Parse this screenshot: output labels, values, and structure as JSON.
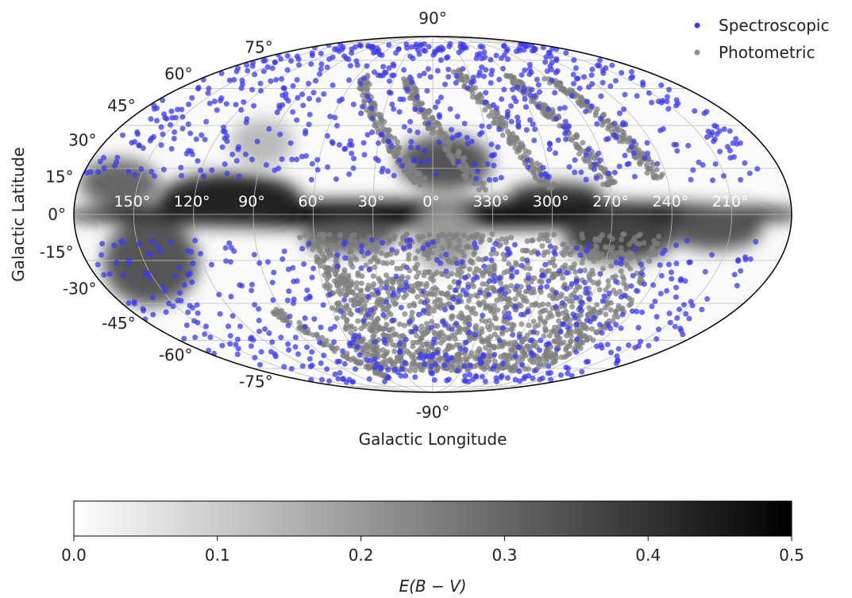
{
  "chart_data": {
    "type": "scatter",
    "projection": "mollweide",
    "xlabel": "Galactic Longitude",
    "ylabel": "Galactic Latitude",
    "grid": true,
    "legend_placement": "top-right",
    "lon_ticks": [
      150,
      120,
      90,
      60,
      30,
      0,
      330,
      300,
      270,
      240,
      210
    ],
    "lon_tick_labels": [
      "150°",
      "120°",
      "90°",
      "60°",
      "30°",
      "0°",
      "330°",
      "300°",
      "270°",
      "240°",
      "210°"
    ],
    "lat_ticks": [
      -90,
      -75,
      -60,
      -45,
      -30,
      -15,
      0,
      15,
      30,
      45,
      60,
      75,
      90
    ],
    "lat_tick_labels": [
      "-90°",
      "-75°",
      "-60°",
      "-45°",
      "-30°",
      "-15°",
      "0°",
      "15°",
      "30°",
      "45°",
      "60°",
      "75°",
      "90°"
    ],
    "series": [
      {
        "name": "Spectroscopic",
        "color": "#3a3af0",
        "n_points_approx": 1200,
        "distribution": "all-sky, avoiding Galactic plane; densest at northern high latitudes (l 60°–180°, b 20°–70°) and southern latitudes around l 300°–200°"
      },
      {
        "name": "Photometric",
        "color": "#808080",
        "n_points_approx": 2500,
        "distribution": "survey stripes; north l 0°–270° (b 10°–65°), dense south l 0°–240° (b -10° to -75°)"
      }
    ],
    "background_map": {
      "quantity": "E(B-V)",
      "cmap": "Greys",
      "range": [
        0,
        0.5
      ],
      "note": "dust reddening; saturated black along the Galactic plane"
    },
    "colorbar": {
      "label": "E(B − V)",
      "ticks": [
        0.0,
        0.1,
        0.2,
        0.3,
        0.4,
        0.5
      ],
      "tick_labels": [
        "0.0",
        "0.1",
        "0.2",
        "0.3",
        "0.4",
        "0.5"
      ],
      "range": [
        0,
        0.5
      ]
    }
  }
}
